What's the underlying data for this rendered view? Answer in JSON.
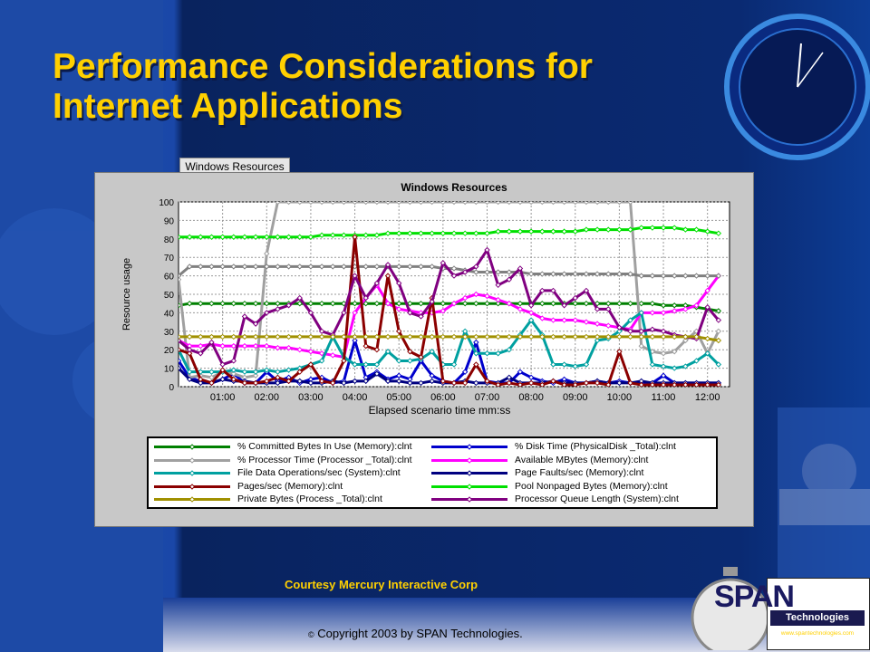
{
  "slide": {
    "title_line1": "Performance Considerations for",
    "title_line2": "Internet Applications",
    "courtesy": "Courtesy Mercury Interactive Corp",
    "copyright_symbol": "©",
    "copyright": "Copyright 2003 by SPAN Technologies.",
    "logo_word": "SPAN",
    "logo_tech": "Technologies",
    "logo_url": "www.spantechnologies.com",
    "tab_label": "Windows Resources"
  },
  "colors": {
    "background": "#0f3d9c",
    "title": "#ffd000",
    "courtesy": "#ffd000"
  },
  "chart_data": {
    "type": "line",
    "title": "Windows Resources",
    "xlabel": "Elapsed scenario time mm:ss",
    "ylabel": "Resource usage",
    "xlim": [
      0,
      750
    ],
    "ylim": [
      0,
      100
    ],
    "x_ticks": [
      60,
      120,
      180,
      240,
      300,
      360,
      420,
      480,
      540,
      600,
      660,
      720
    ],
    "x_tick_labels": [
      "01:00",
      "02:00",
      "03:00",
      "04:00",
      "05:00",
      "06:00",
      "07:00",
      "08:00",
      "09:00",
      "10:00",
      "11:00",
      "12:00"
    ],
    "y_ticks": [
      0,
      10,
      20,
      30,
      40,
      50,
      60,
      70,
      80,
      90,
      100
    ],
    "grid": true,
    "legend_position": "bottom",
    "x": [
      0,
      15,
      30,
      45,
      60,
      75,
      90,
      105,
      120,
      135,
      150,
      165,
      180,
      195,
      210,
      225,
      240,
      255,
      270,
      285,
      300,
      315,
      330,
      345,
      360,
      375,
      390,
      405,
      420,
      435,
      450,
      465,
      480,
      495,
      510,
      525,
      540,
      555,
      570,
      585,
      600,
      615,
      630,
      645,
      660,
      675,
      690,
      705,
      720,
      735
    ],
    "series": [
      {
        "name": "% Committed Bytes In Use (Memory):clnt",
        "color": "#008000",
        "values": [
          44,
          45,
          45,
          45,
          45,
          45,
          45,
          45,
          45,
          45,
          45,
          45,
          45,
          45,
          45,
          45,
          45,
          45,
          45,
          45,
          45,
          45,
          45,
          45,
          45,
          45,
          45,
          45,
          45,
          45,
          45,
          45,
          45,
          45,
          45,
          45,
          45,
          45,
          45,
          45,
          45,
          45,
          45,
          45,
          44,
          44,
          44,
          43,
          42,
          41
        ]
      },
      {
        "name": "% Disk Time (PhysicalDisk _Total):clnt",
        "color": "#0000cc",
        "values": [
          14,
          5,
          3,
          2,
          4,
          7,
          2,
          2,
          8,
          3,
          5,
          2,
          4,
          5,
          2,
          3,
          25,
          5,
          8,
          4,
          6,
          4,
          14,
          6,
          3,
          2,
          8,
          24,
          3,
          2,
          2,
          8,
          5,
          3,
          2,
          4,
          2,
          2,
          3,
          2,
          3,
          2,
          2,
          2,
          6,
          2,
          2,
          2,
          2,
          2
        ]
      },
      {
        "name": "% Processor Time (Processor _Total):clnt",
        "color": "#a0a0a0",
        "values": [
          58,
          5,
          6,
          5,
          8,
          7,
          5,
          6,
          72,
          100,
          100,
          100,
          100,
          100,
          100,
          100,
          100,
          100,
          100,
          100,
          100,
          100,
          100,
          100,
          100,
          100,
          100,
          100,
          100,
          100,
          100,
          100,
          100,
          100,
          100,
          100,
          100,
          100,
          100,
          100,
          100,
          100,
          22,
          19,
          18,
          19,
          25,
          30,
          18,
          30
        ]
      },
      {
        "name": "Available MBytes (Memory):clnt",
        "color": "#ff00ff",
        "values": [
          25,
          22,
          22,
          23,
          22,
          22,
          22,
          22,
          22,
          21,
          21,
          20,
          19,
          18,
          17,
          16,
          40,
          48,
          55,
          45,
          42,
          41,
          40,
          40,
          41,
          45,
          48,
          50,
          49,
          47,
          45,
          42,
          40,
          37,
          36,
          36,
          36,
          35,
          34,
          33,
          32,
          31,
          40,
          40,
          40,
          41,
          42,
          44,
          52,
          60
        ]
      },
      {
        "name": "% Processor Time (Processor _Total):clnt",
        "color": "#808080",
        "values": [
          60,
          65,
          65,
          65,
          65,
          65,
          65,
          65,
          65,
          65,
          65,
          65,
          65,
          65,
          65,
          65,
          65,
          65,
          65,
          65,
          65,
          65,
          65,
          65,
          64,
          64,
          63,
          62,
          62,
          62,
          62,
          62,
          61,
          61,
          61,
          61,
          61,
          61,
          61,
          61,
          61,
          61,
          60,
          60,
          60,
          60,
          60,
          60,
          60,
          60
        ]
      },
      {
        "name": "Page Faults/sec (Memory):clnt",
        "color": "#000080",
        "values": [
          10,
          4,
          2,
          2,
          4,
          3,
          3,
          2,
          2,
          2,
          3,
          3,
          2,
          2,
          3,
          2,
          3,
          3,
          7,
          3,
          3,
          2,
          2,
          3,
          2,
          2,
          3,
          2,
          2,
          2,
          5,
          2,
          2,
          2,
          3,
          2,
          2,
          2,
          3,
          2,
          2,
          2,
          3,
          2,
          2,
          2,
          2,
          2,
          2,
          2
        ]
      },
      {
        "name": "File Data Operations/sec (System):clnt",
        "color": "#00a0a0",
        "values": [
          20,
          8,
          8,
          8,
          8,
          9,
          8,
          8,
          9,
          8,
          9,
          10,
          12,
          14,
          27,
          16,
          12,
          12,
          12,
          19,
          14,
          14,
          15,
          19,
          12,
          12,
          30,
          18,
          18,
          18,
          20,
          28,
          36,
          28,
          12,
          12,
          11,
          12,
          25,
          26,
          30,
          36,
          40,
          12,
          11,
          10,
          11,
          14,
          18,
          12
        ]
      },
      {
        "name": "Pool Nonpaged Bytes (Memory):clnt",
        "color": "#00e000",
        "values": [
          81,
          81,
          81,
          81,
          81,
          81,
          81,
          81,
          81,
          81,
          81,
          81,
          81,
          82,
          82,
          82,
          82,
          82,
          82,
          83,
          83,
          83,
          83,
          83,
          83,
          83,
          83,
          83,
          83,
          84,
          84,
          84,
          84,
          84,
          84,
          84,
          84,
          85,
          85,
          85,
          85,
          85,
          86,
          86,
          86,
          86,
          85,
          85,
          84,
          83
        ]
      },
      {
        "name": "Pages/sec (Memory):clnt",
        "color": "#8b0000",
        "values": [
          20,
          18,
          4,
          2,
          9,
          4,
          2,
          2,
          3,
          5,
          3,
          8,
          12,
          3,
          2,
          14,
          81,
          22,
          20,
          60,
          30,
          19,
          16,
          48,
          3,
          2,
          2,
          12,
          3,
          1,
          2,
          1,
          2,
          1,
          3,
          1,
          1,
          2,
          2,
          1,
          19,
          2,
          1,
          1,
          1,
          1,
          1,
          1,
          1,
          1
        ]
      },
      {
        "name": "Processor Queue Length (System):clnt",
        "color": "#800080",
        "values": [
          25,
          20,
          18,
          24,
          12,
          14,
          38,
          34,
          40,
          42,
          44,
          48,
          40,
          30,
          28,
          40,
          60,
          48,
          56,
          66,
          56,
          40,
          38,
          46,
          67,
          60,
          62,
          65,
          74,
          55,
          58,
          64,
          44,
          52,
          52,
          44,
          48,
          52,
          42,
          42,
          32,
          30,
          30,
          31,
          30,
          28,
          27,
          26,
          43,
          36
        ]
      },
      {
        "name": "Private Bytes (Process _Total):clnt",
        "color": "#a09000",
        "values": [
          27,
          27,
          27,
          27,
          27,
          27,
          27,
          27,
          27,
          27,
          27,
          27,
          27,
          27,
          27,
          27,
          27,
          27,
          27,
          27,
          27,
          27,
          27,
          27,
          27,
          27,
          27,
          27,
          27,
          27,
          27,
          27,
          27,
          27,
          27,
          27,
          27,
          27,
          27,
          27,
          27,
          27,
          27,
          27,
          27,
          27,
          27,
          27,
          26,
          25
        ]
      }
    ],
    "legend": [
      {
        "label": "% Committed Bytes In Use (Memory):clnt",
        "color": "#008000"
      },
      {
        "label": "% Disk Time (PhysicalDisk _Total):clnt",
        "color": "#0000cc"
      },
      {
        "label": "% Processor Time (Processor _Total):clnt",
        "color": "#a0a0a0"
      },
      {
        "label": "Available MBytes (Memory):clnt",
        "color": "#ff00ff"
      },
      {
        "label": "File Data Operations/sec (System):clnt",
        "color": "#00a0a0"
      },
      {
        "label": "Page Faults/sec (Memory):clnt",
        "color": "#000080"
      },
      {
        "label": "Pages/sec (Memory):clnt",
        "color": "#8b0000"
      },
      {
        "label": "Pool Nonpaged Bytes (Memory):clnt",
        "color": "#00e000"
      },
      {
        "label": "Private Bytes (Process _Total):clnt",
        "color": "#a09000"
      },
      {
        "label": "Processor Queue Length (System):clnt",
        "color": "#800080"
      }
    ]
  }
}
